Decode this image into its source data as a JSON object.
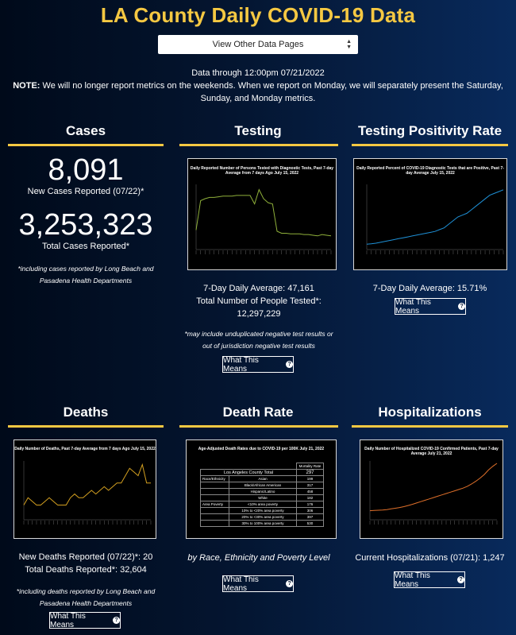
{
  "header": {
    "title": "LA County Daily COVID-19 Data",
    "dropdown_label": "View Other Data Pages",
    "data_through": "Data through 12:00pm 07/21/2022",
    "note_label": "NOTE:",
    "note_text": " We will no longer report metrics on the weekends. When we report on Monday, we will separately present the Saturday, Sunday, and Monday metrics."
  },
  "cases": {
    "title": "Cases",
    "new_cases": "8,091",
    "new_cases_label": "New Cases Reported (07/22)*",
    "total_cases": "3,253,323",
    "total_cases_label": "Total Cases Reported*",
    "footnote": "*including cases reported by Long Beach and Pasadena Health Departments"
  },
  "testing": {
    "title": "Testing",
    "chart_title": "Daily Reported Number of Persons Tested with Diagnostic Tests, Past 7-day Average from 7 days Ago July 15, 2022",
    "avg_label": "7-Day Daily Average: 47,161",
    "total_label": "Total Number of People Tested*:",
    "total_value": "12,297,229",
    "footnote": "*may include unduplicated negative test results or out of jurisdiction negative test results",
    "button": "What This Means"
  },
  "positivity": {
    "title": "Testing Positivity Rate",
    "chart_title": "Daily Reported Percent of COVID-19 Diagnostic Tests that are Positive, Past 7-day Average July 15, 2022",
    "avg_label": "7-Day Daily Average: 15.71%",
    "button": "What This Means"
  },
  "deaths": {
    "title": "Deaths",
    "chart_title": "Daily Number of Deaths, Past 7-day Average from 7 days Ago July 15, 2022",
    "new_label": "New Deaths Reported (07/22)*: 20",
    "total_label": "Total Deaths Reported*: 32,604",
    "footnote": "*including deaths reported by Long Beach and Pasadena Health Departments",
    "button": "What This Means"
  },
  "death_rate": {
    "title": "Death Rate",
    "table_title": "Age-Adjusted Death Rates due to COVID-19 per 100K July 21, 2022",
    "col_header": "Mortality Rate",
    "total_label": "Los Angeles County Total",
    "total_value": "297",
    "rows": [
      {
        "group": "Race/Ethnicity",
        "sub": "Asian",
        "value": "199"
      },
      {
        "group": "",
        "sub": "Black/African American",
        "value": "317"
      },
      {
        "group": "",
        "sub": "Hispanic/Latino",
        "value": "458"
      },
      {
        "group": "",
        "sub": "White",
        "value": "182"
      },
      {
        "group": "Area Poverty",
        "sub": "<10% area poverty",
        "value": "176"
      },
      {
        "group": "",
        "sub": "10% to <20% area poverty",
        "value": "306"
      },
      {
        "group": "",
        "sub": "20% to <30% area poverty",
        "value": "397"
      },
      {
        "group": "",
        "sub": "30% to 100% area poverty",
        "value": "530"
      }
    ],
    "caption": "by Race, Ethnicity and Poverty Level",
    "button": "What This Means"
  },
  "hospitalizations": {
    "title": "Hospitalizations",
    "chart_title": "Daily Number of Hospitalized COVID-19 Confirmed Patients, Past 7-day Average July 21, 2022",
    "current_label": "Current Hospitalizations (07/21): 1,247",
    "button": "What This Means"
  },
  "colors": {
    "accent": "#f5c842",
    "testing_line": "#8fb03a",
    "positivity_line": "#1e90d6",
    "deaths_line": "#d4a020",
    "hosp_line": "#e0702a"
  },
  "chart_data": [
    {
      "type": "line",
      "name": "testing",
      "x": [
        0,
        1,
        2,
        3,
        4,
        5,
        6,
        7,
        8,
        9,
        10,
        11,
        12,
        13,
        14,
        15,
        16,
        17,
        18,
        19,
        20,
        21,
        22,
        23,
        24,
        25,
        26,
        27,
        28,
        29,
        30
      ],
      "values": [
        30,
        75,
        78,
        80,
        80,
        81,
        82,
        82,
        82,
        83,
        83,
        83,
        83,
        70,
        92,
        78,
        72,
        70,
        28,
        25,
        25,
        24,
        24,
        24,
        23,
        23,
        22,
        21,
        23,
        22,
        21
      ],
      "ylim": [
        0,
        100
      ]
    },
    {
      "type": "line",
      "name": "positivity",
      "x": [
        0,
        1,
        2,
        3,
        4,
        5,
        6,
        7,
        8,
        9,
        10,
        11,
        12,
        13,
        14,
        15,
        16,
        17,
        18,
        19,
        20,
        21,
        22,
        23,
        24,
        25,
        26,
        27,
        28,
        29,
        30
      ],
      "values": [
        3,
        3.2,
        3.5,
        4,
        4.5,
        5,
        5.5,
        6,
        6.5,
        7,
        7.5,
        8,
        8.5,
        9,
        9.5,
        10,
        11,
        12,
        14,
        16,
        18,
        19,
        20,
        22,
        24,
        26,
        28,
        30,
        31,
        32,
        33
      ],
      "ylim": [
        0,
        36
      ]
    },
    {
      "type": "line",
      "name": "deaths",
      "x": [
        0,
        1,
        2,
        3,
        4,
        5,
        6,
        7,
        8,
        9,
        10,
        11,
        12,
        13,
        14,
        15,
        16,
        17,
        18,
        19,
        20,
        21,
        22,
        23,
        24,
        25,
        26,
        27,
        28,
        29,
        30
      ],
      "values": [
        2,
        3,
        2.5,
        2,
        2,
        2.5,
        3,
        2.5,
        2,
        2,
        2,
        3,
        3.5,
        3,
        3,
        3.5,
        4,
        3.5,
        4,
        4.5,
        4,
        4.5,
        5,
        5,
        6,
        7,
        6.5,
        6,
        7.5,
        5,
        5
      ],
      "ylim": [
        0,
        8
      ]
    },
    {
      "type": "line",
      "name": "hospitalizations",
      "x": [
        0,
        1,
        2,
        3,
        4,
        5,
        6,
        7,
        8,
        9,
        10,
        11,
        12,
        13,
        14,
        15,
        16,
        17,
        18,
        19,
        20,
        21,
        22,
        23,
        24,
        25,
        26,
        27,
        28,
        29,
        30
      ],
      "values": [
        200,
        205,
        210,
        215,
        225,
        240,
        255,
        270,
        290,
        315,
        340,
        370,
        400,
        430,
        460,
        490,
        520,
        550,
        580,
        610,
        640,
        670,
        700,
        740,
        790,
        850,
        920,
        1000,
        1100,
        1180,
        1247
      ],
      "ylim": [
        0,
        1300
      ]
    }
  ]
}
